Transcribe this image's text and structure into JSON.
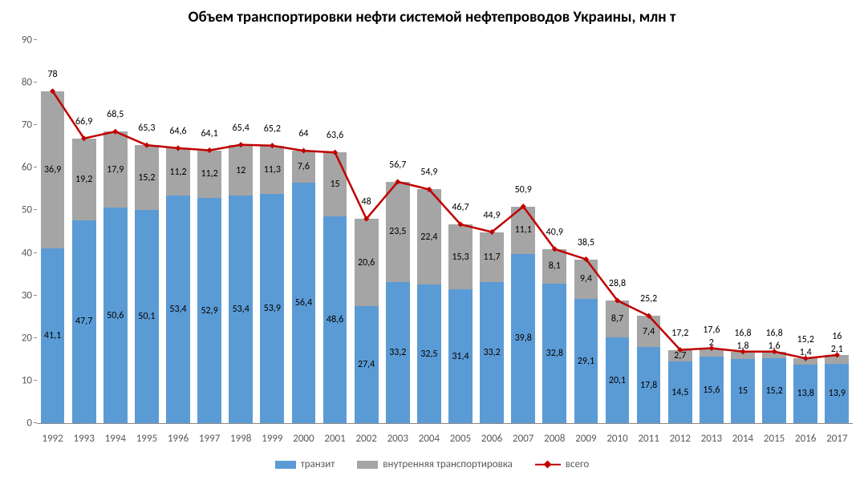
{
  "chart": {
    "type": "stacked-bar-with-line",
    "title": "Объем транспортировки нефти системой нефтепроводов Украины, млн т",
    "title_fontsize": 19,
    "title_fontweight": "bold",
    "title_color": "#000000",
    "background_color": "#ffffff",
    "axis_tick_color": "#888888",
    "label_color": "#595959",
    "data_label_color": "#000000",
    "data_label_fontsize": 12,
    "x_label_fontsize": 13,
    "y_label_fontsize": 13,
    "y": {
      "min": 0,
      "max": 90,
      "step": 10
    },
    "bar_width_ratio": 0.76,
    "categories": [
      "1992",
      "1993",
      "1994",
      "1995",
      "1996",
      "1997",
      "1998",
      "1999",
      "2000",
      "2001",
      "2002",
      "2003",
      "2004",
      "2005",
      "2006",
      "2007",
      "2008",
      "2009",
      "2010",
      "2011",
      "2012",
      "2013",
      "2014",
      "2015",
      "2016",
      "2017"
    ],
    "series": {
      "transit": {
        "name": "транзит",
        "color": "#5b9bd5",
        "values": [
          41.1,
          47.7,
          50.6,
          50.1,
          53.4,
          52.9,
          53.4,
          53.9,
          56.4,
          48.6,
          27.4,
          33.2,
          32.5,
          31.4,
          33.2,
          39.8,
          32.8,
          29.1,
          20.1,
          17.8,
          14.5,
          15.6,
          15.0,
          15.2,
          13.8,
          13.9
        ],
        "labels": [
          "41,1",
          "47,7",
          "50,6",
          "50,1",
          "53,4",
          "52,9",
          "53,4",
          "53,9",
          "56,4",
          "48,6",
          "27,4",
          "33,2",
          "32,5",
          "31,4",
          "33,2",
          "39,8",
          "32,8",
          "29,1",
          "20,1",
          "17,8",
          "14,5",
          "15,6",
          "15",
          "15,2",
          "13,8",
          "13,9"
        ]
      },
      "domestic": {
        "name": "внутренняя транспортировка",
        "color": "#a5a5a5",
        "values": [
          36.9,
          19.2,
          17.9,
          15.2,
          11.2,
          11.2,
          12.0,
          11.3,
          7.6,
          15.0,
          20.6,
          23.5,
          22.4,
          15.3,
          11.7,
          11.1,
          8.1,
          9.4,
          8.7,
          7.4,
          2.7,
          2.0,
          1.8,
          1.6,
          1.4,
          2.1
        ],
        "labels": [
          "36,9",
          "19,2",
          "17,9",
          "15,2",
          "11,2",
          "11,2",
          "12",
          "11,3",
          "7,6",
          "15",
          "20,6",
          "23,5",
          "22,4",
          "15,3",
          "11,7",
          "11,1",
          "8,1",
          "9,4",
          "8,7",
          "7,4",
          "2,7",
          "2",
          "1,8",
          "1,6",
          "1,4",
          "2,1"
        ]
      },
      "total": {
        "name": "всего",
        "color": "#c00000",
        "marker_color": "#c00000",
        "marker_size": 5,
        "line_width": 2.5,
        "values": [
          78.0,
          66.9,
          68.5,
          65.3,
          64.6,
          64.1,
          65.4,
          65.2,
          64.0,
          63.6,
          48.0,
          56.7,
          54.9,
          46.7,
          44.9,
          50.9,
          40.9,
          38.5,
          28.8,
          25.2,
          17.2,
          17.6,
          16.8,
          16.8,
          15.2,
          16.0
        ],
        "labels": [
          "78",
          "66,9",
          "68,5",
          "65,3",
          "64,6",
          "64,1",
          "65,4",
          "65,2",
          "64",
          "63,6",
          "48",
          "56,7",
          "54,9",
          "46,7",
          "44,9",
          "50,9",
          "40,9",
          "38,5",
          "28,8",
          "25,2",
          "17,2",
          "17,6",
          "16,8",
          "16,8",
          "15,2",
          "16"
        ]
      }
    },
    "legend_fontsize": 13
  }
}
